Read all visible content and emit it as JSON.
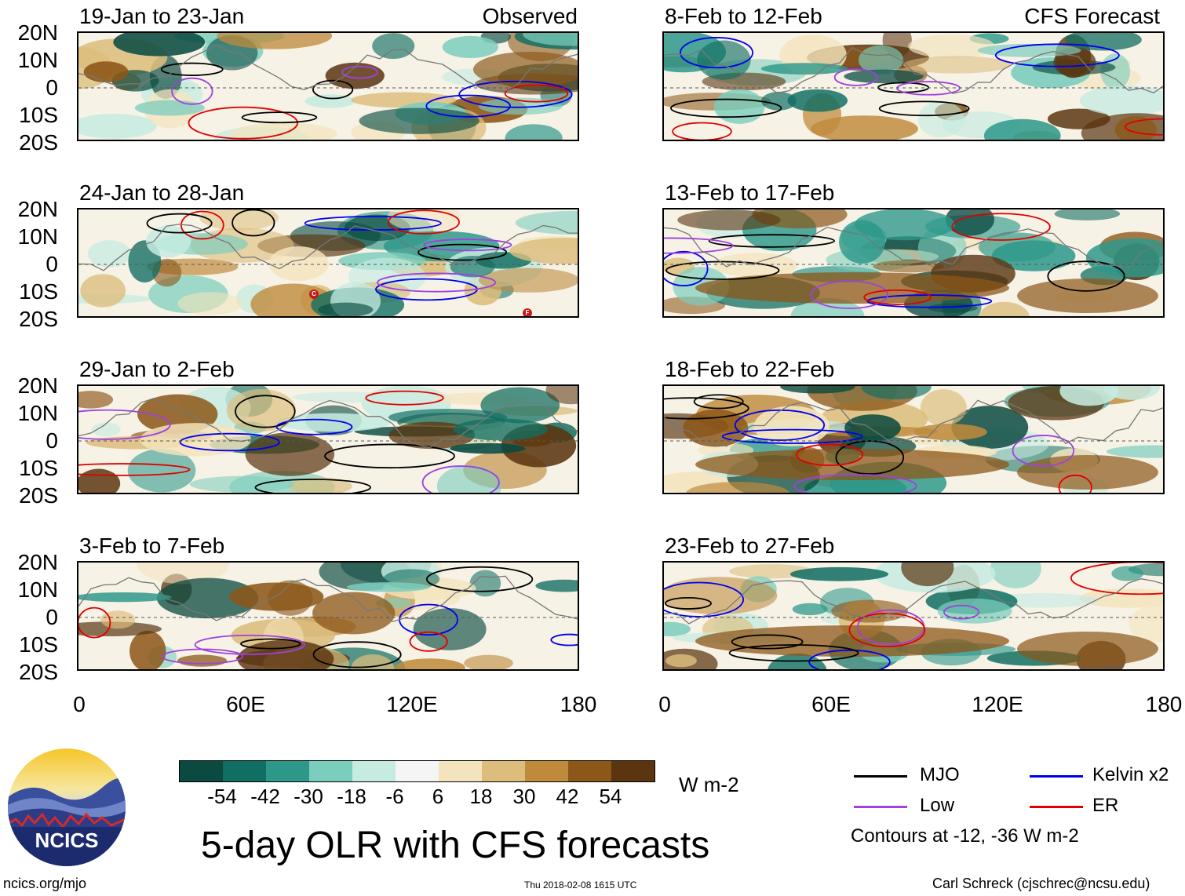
{
  "panels": [
    {
      "title": "19-Jan to 23-Jan",
      "tag": "Observed"
    },
    {
      "title": "24-Jan to 28-Jan",
      "tag": ""
    },
    {
      "title": "29-Jan to 2-Feb",
      "tag": ""
    },
    {
      "title": "3-Feb to 7-Feb",
      "tag": ""
    },
    {
      "title": "8-Feb to 12-Feb",
      "tag": "CFS Forecast"
    },
    {
      "title": "13-Feb to 17-Feb",
      "tag": ""
    },
    {
      "title": "18-Feb to 22-Feb",
      "tag": ""
    },
    {
      "title": "23-Feb to 27-Feb",
      "tag": ""
    }
  ],
  "storm_markers": [
    "C",
    "F"
  ],
  "lat_labels": [
    "20N",
    "10N",
    "0",
    "10S",
    "20S"
  ],
  "lon_labels": [
    "0",
    "60E",
    "120E",
    "180"
  ],
  "colorbar": {
    "colors": [
      "#0a4a40",
      "#116e62",
      "#2d988a",
      "#7bcdbd",
      "#c6ebe1",
      "#f5f5f5",
      "#f4e4bd",
      "#dcbd7c",
      "#bf8a3c",
      "#8c5718",
      "#5a3510"
    ],
    "labels": [
      "-54",
      "-42",
      "-30",
      "-18",
      "-6",
      "6",
      "18",
      "30",
      "42",
      "54"
    ],
    "units": "W m-2"
  },
  "legend": {
    "items": [
      {
        "label": "MJO",
        "color": "#000000"
      },
      {
        "label": "Kelvin x2",
        "color": "#0000ee"
      },
      {
        "label": "Low",
        "color": "#a040e0"
      },
      {
        "label": "ER",
        "color": "#e00000"
      }
    ],
    "note": "Contours at -12, -36 W m-2"
  },
  "title": "5-day OLR with CFS forecasts",
  "logo_text": "NCICS",
  "footer_left": "ncics.org/mjo",
  "timestamp": "Thu 2018-02-08 1615 UTC",
  "credit": "Carl Schreck (cjschrec@ncsu.edu)"
}
